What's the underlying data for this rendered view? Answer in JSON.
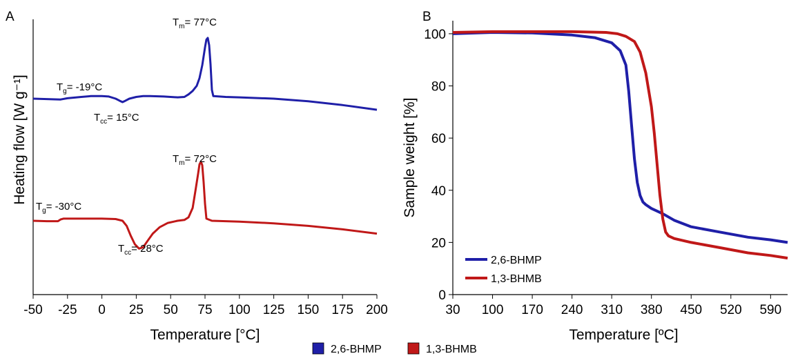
{
  "chart_data": [
    {
      "type": "line",
      "panel_label": "A",
      "xlabel": "Temperature [°C]",
      "ylabel": "Heating flow [W g⁻¹]",
      "xlim": [
        -50,
        200
      ],
      "x_ticks": [
        -50,
        -25,
        0,
        25,
        50,
        75,
        100,
        125,
        150,
        175,
        200
      ],
      "y_ticks_shown": false,
      "grid": false,
      "series": [
        {
          "name": "2,6-BHMP",
          "color": "#1f1fa8",
          "x": [
            -50,
            -40,
            -30,
            -25,
            -15,
            -8,
            0,
            5,
            10,
            13,
            15,
            17,
            20,
            25,
            30,
            35,
            45,
            55,
            60,
            63,
            66,
            69,
            71,
            73,
            75,
            76,
            77,
            78,
            79,
            80,
            81,
            90,
            100,
            125,
            150,
            175,
            200
          ],
          "y": [
            0.0,
            -0.01,
            -0.02,
            0.01,
            0.04,
            0.06,
            0.06,
            0.05,
            0.0,
            -0.05,
            -0.08,
            -0.05,
            0.0,
            0.04,
            0.06,
            0.06,
            0.05,
            0.03,
            0.04,
            0.1,
            0.18,
            0.3,
            0.48,
            0.78,
            1.2,
            1.38,
            1.42,
            1.25,
            0.8,
            0.2,
            0.06,
            0.04,
            0.03,
            0.0,
            -0.06,
            -0.15,
            -0.26
          ],
          "annotations": [
            {
              "label": "T",
              "sub": "g",
              "text": "= -19°C",
              "x": -19
            },
            {
              "label": "T",
              "sub": "cc",
              "text": "= 15°C",
              "x": 15
            },
            {
              "label": "T",
              "sub": "m",
              "text": "= 77°C",
              "x": 77
            }
          ]
        },
        {
          "name": "1,3-BHMB",
          "color": "#c01818",
          "x": [
            -50,
            -40,
            -32,
            -30,
            -28,
            -20,
            0,
            10,
            15,
            18,
            21,
            24,
            27,
            30,
            33,
            37,
            42,
            48,
            55,
            60,
            63,
            66,
            68,
            70,
            71,
            72,
            73,
            74,
            75,
            76,
            80,
            100,
            125,
            150,
            175,
            200
          ],
          "y": [
            0.0,
            -0.01,
            -0.01,
            0.03,
            0.05,
            0.05,
            0.05,
            0.04,
            0.0,
            -0.12,
            -0.35,
            -0.55,
            -0.65,
            -0.62,
            -0.48,
            -0.3,
            -0.15,
            -0.05,
            0.0,
            0.02,
            0.08,
            0.3,
            0.7,
            1.1,
            1.32,
            1.38,
            1.3,
            0.9,
            0.4,
            0.05,
            0.0,
            -0.02,
            -0.06,
            -0.12,
            -0.2,
            -0.3
          ],
          "annotations": [
            {
              "label": "T",
              "sub": "g",
              "text": "= -30°C",
              "x": -30
            },
            {
              "label": "T",
              "sub": "cc",
              "text": "= 28°C",
              "x": 28
            },
            {
              "label": "T",
              "sub": "m",
              "text": "= 72°C",
              "x": 72
            }
          ]
        }
      ]
    },
    {
      "type": "line",
      "panel_label": "B",
      "xlabel": "Temperature [ºC]",
      "ylabel": "Sample weight [%]",
      "xlim": [
        30,
        620
      ],
      "ylim": [
        0,
        105
      ],
      "x_ticks": [
        30,
        100,
        170,
        240,
        310,
        380,
        450,
        520,
        590
      ],
      "y_ticks": [
        0,
        20,
        40,
        60,
        80,
        100
      ],
      "grid": false,
      "legend_position": "bottom-left",
      "series": [
        {
          "name": "2,6-BHMP",
          "color": "#1f1fa8",
          "x": [
            30,
            100,
            170,
            240,
            280,
            310,
            325,
            335,
            340,
            345,
            350,
            355,
            360,
            365,
            370,
            380,
            400,
            420,
            450,
            500,
            550,
            590,
            620
          ],
          "y": [
            100,
            100.5,
            100.3,
            99.5,
            98.5,
            96.5,
            93.5,
            88,
            78,
            65,
            52,
            43,
            38,
            35.5,
            34.5,
            33,
            31,
            28.5,
            26,
            24,
            22,
            21,
            20
          ]
        },
        {
          "name": "1,3-BHMB",
          "color": "#c01818",
          "x": [
            30,
            100,
            170,
            240,
            300,
            320,
            335,
            350,
            360,
            370,
            380,
            385,
            390,
            395,
            400,
            405,
            410,
            420,
            450,
            500,
            550,
            590,
            620
          ],
          "y": [
            100.5,
            100.8,
            100.8,
            100.8,
            100.5,
            100,
            99,
            97,
            93,
            85,
            72,
            62,
            50,
            38,
            29,
            24,
            22.5,
            21.5,
            20,
            18,
            16,
            15,
            14
          ]
        }
      ]
    }
  ],
  "legend": {
    "items": [
      {
        "label": "2,6-BHMP",
        "color": "#1f1fa8"
      },
      {
        "label": "1,3-BHMB",
        "color": "#c01818"
      }
    ]
  }
}
